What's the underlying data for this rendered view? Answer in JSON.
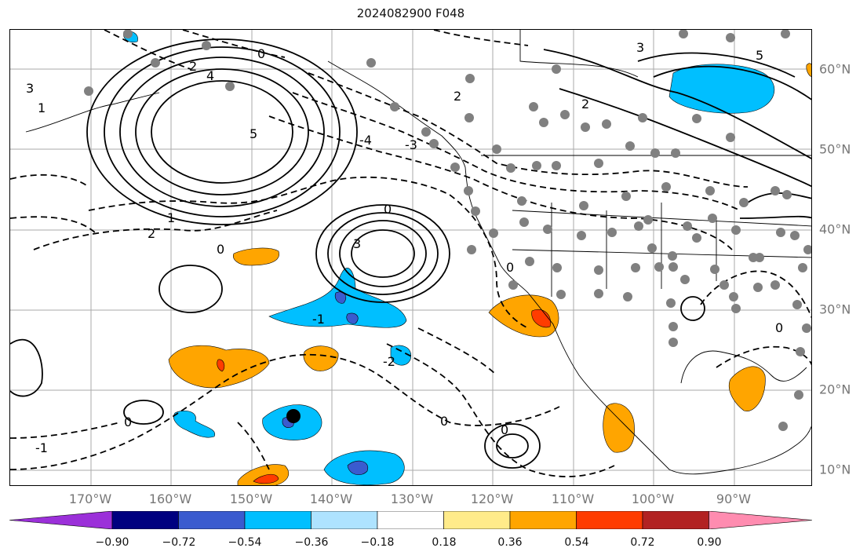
{
  "title": "2024082900 F048",
  "lon_labels": [
    "170°W",
    "160°W",
    "150°W",
    "140°W",
    "130°W",
    "120°W",
    "110°W",
    "100°W",
    "90°W"
  ],
  "lat_labels": [
    "60°N",
    "50°N",
    "40°N",
    "30°N",
    "20°N",
    "10°N"
  ],
  "colorbar": {
    "tick_labels": [
      "−0.90",
      "−0.72",
      "−0.54",
      "−0.36",
      "−0.18",
      "0.18",
      "0.36",
      "0.54",
      "0.72",
      "0.90"
    ],
    "colors": [
      "#9b30d9",
      "#000080",
      "#3a5bcf",
      "#00bfff",
      "#aee3ff",
      "#ffffff",
      "#ffeb8a",
      "#ffa500",
      "#ff3c00",
      "#b22222",
      "#ff8cb0"
    ]
  },
  "contour_labels": [
    "0",
    "1",
    "2",
    "3",
    "4",
    "5",
    "-1",
    "-2",
    "-3",
    "-4"
  ],
  "colors": {
    "land_contour": "#000000",
    "station": "#808080",
    "grid": "#aaaaaa"
  }
}
